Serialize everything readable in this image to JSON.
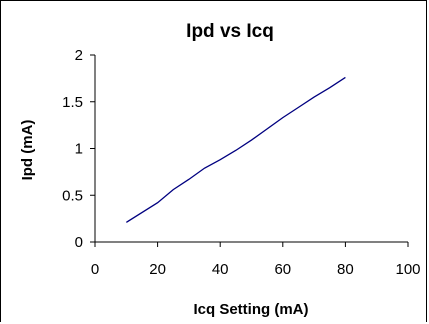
{
  "chart_data": {
    "type": "line",
    "title": "Ipd vs Icq",
    "xlabel": "Icq Setting (mA)",
    "ylabel": "Ipd (mA)",
    "xlim": [
      0,
      100
    ],
    "ylim": [
      0,
      2
    ],
    "xticks": [
      "0",
      "20",
      "40",
      "60",
      "80",
      "100"
    ],
    "yticks": [
      "0",
      "0.5",
      "1",
      "1.5",
      "2"
    ],
    "grid": false,
    "legend": "none",
    "series": [
      {
        "color": "#000080",
        "x": [
          10,
          20,
          25,
          30,
          35,
          40,
          45,
          50,
          55,
          60,
          65,
          70,
          75,
          80
        ],
        "y": [
          0.21,
          0.42,
          0.56,
          0.67,
          0.79,
          0.88,
          0.98,
          1.09,
          1.21,
          1.33,
          1.44,
          1.55,
          1.65,
          1.76
        ]
      }
    ]
  }
}
